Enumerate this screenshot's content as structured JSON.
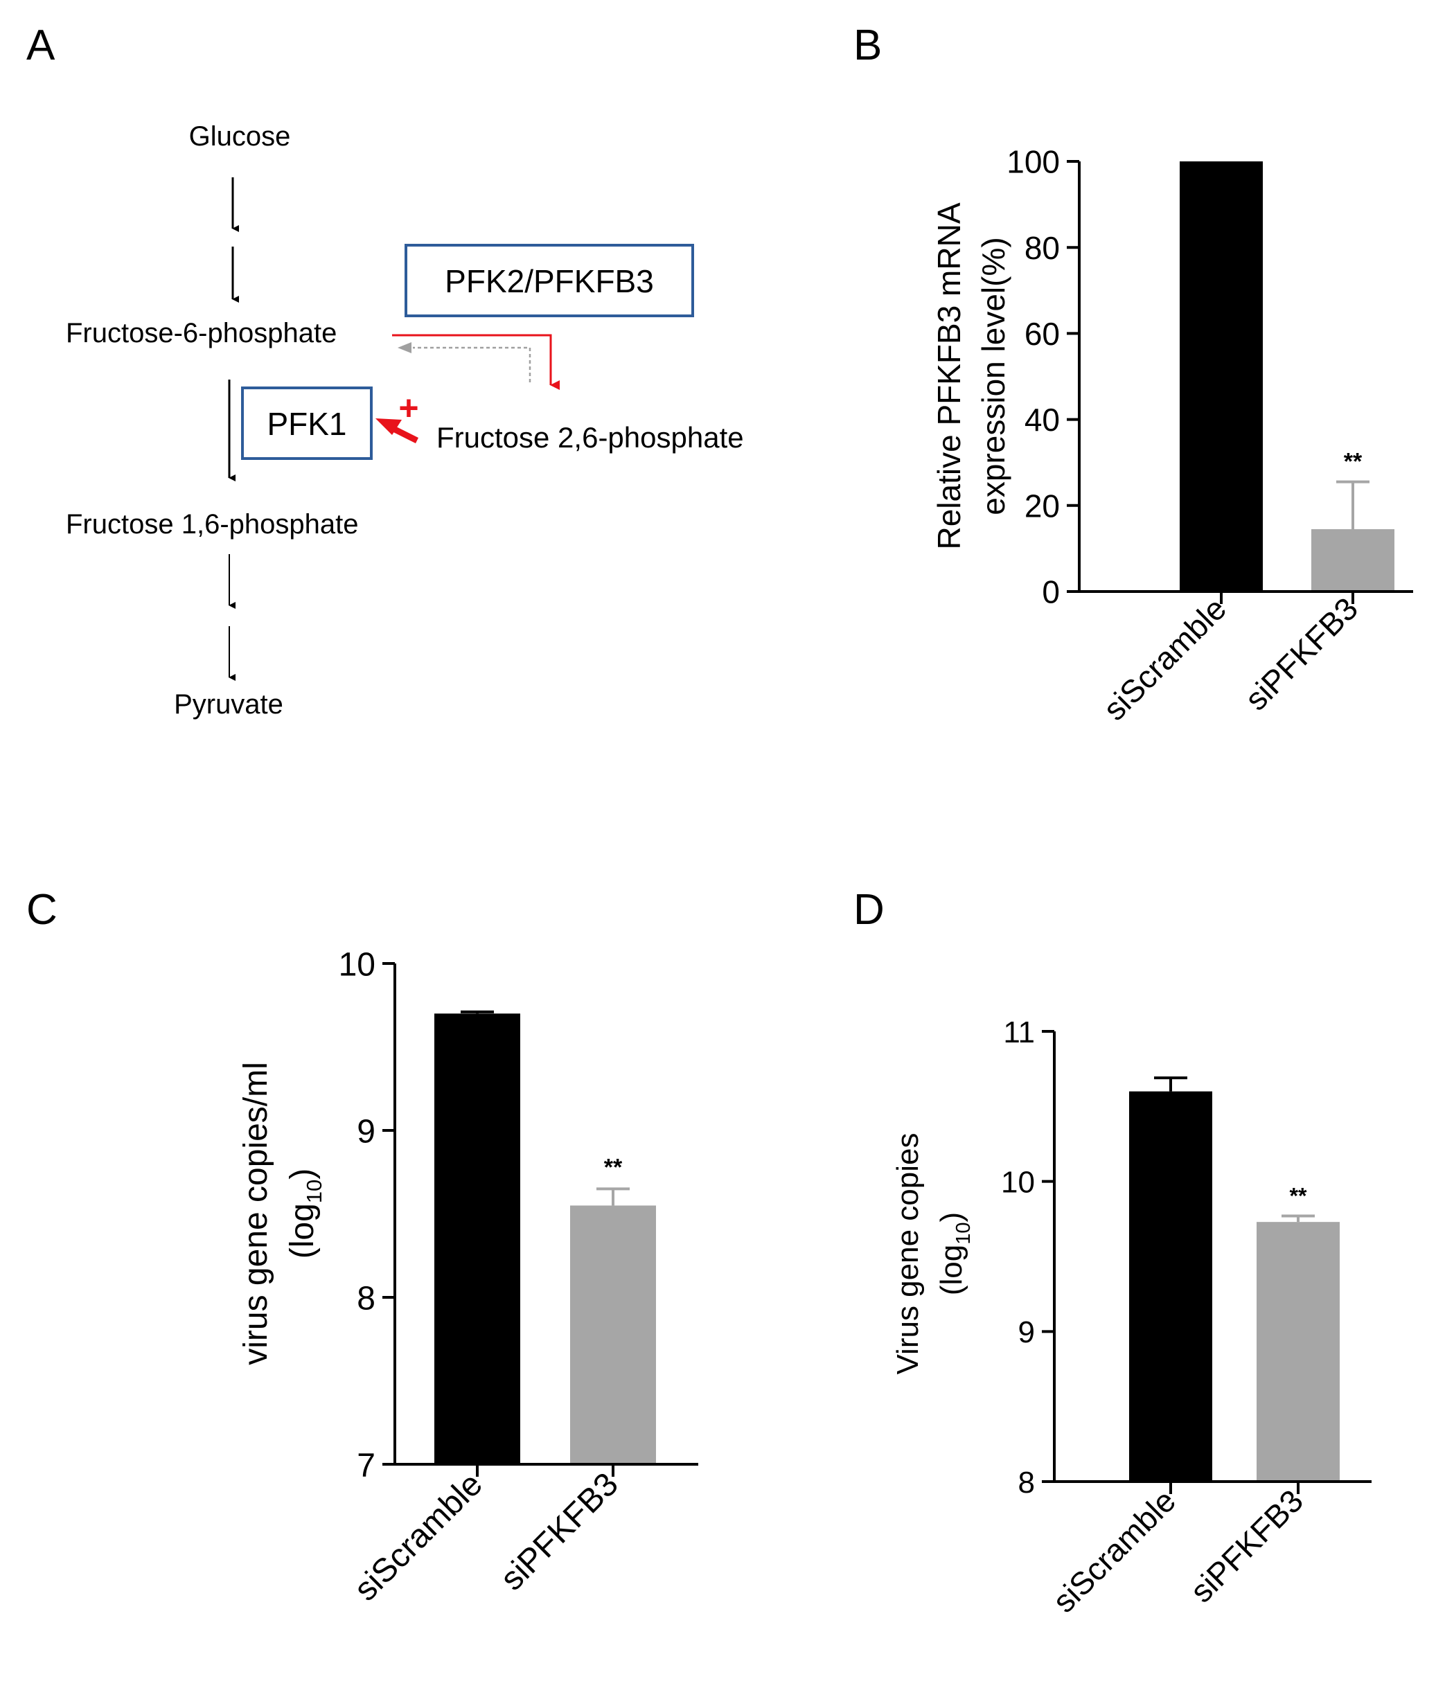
{
  "panels": {
    "A": "A",
    "B": "B",
    "C": "C",
    "D": "D"
  },
  "pathway": {
    "nodes": {
      "glucose": "Glucose",
      "f6p": "Fructose-6-phosphate",
      "f16p": "Fructose 1,6-phosphate",
      "pyruvate": "Pyruvate",
      "f26p": "Fructose 2,6-phosphate"
    },
    "enzymes": {
      "pfk1": "PFK1",
      "pfk2": "PFK2/PFKFB3"
    },
    "activation_symbol": "+",
    "colors": {
      "box": "#2E5C9A",
      "activation": "#E8131B",
      "reverse": "#A0A0A0"
    }
  },
  "chart_data": [
    {
      "panel": "B",
      "type": "bar",
      "categories": [
        "siScramble",
        "siPFKFB3"
      ],
      "values": [
        100,
        14.5
      ],
      "errors": [
        0,
        11
      ],
      "significance": [
        "",
        "**"
      ],
      "ylabel": [
        "Relative PFKFB3 mRNA",
        "expression level(%)"
      ],
      "ylim": [
        0,
        100
      ],
      "yticks": [
        0,
        20,
        40,
        60,
        80,
        100
      ],
      "colors": [
        "#000000",
        "#A6A6A6"
      ]
    },
    {
      "panel": "C",
      "type": "bar",
      "categories": [
        "siScramble",
        "siPFKFB3"
      ],
      "values": [
        9.7,
        8.55
      ],
      "errors": [
        0.01,
        0.1
      ],
      "significance": [
        "",
        "**"
      ],
      "ylabel": [
        "virus gene copies/ml",
        "(log",
        "10",
        ")"
      ],
      "ylim": [
        7,
        10
      ],
      "yticks": [
        7,
        8,
        9,
        10
      ],
      "colors": [
        "#000000",
        "#A6A6A6"
      ]
    },
    {
      "panel": "D",
      "type": "bar",
      "categories": [
        "siScramble",
        "siPFKFB3"
      ],
      "values": [
        10.6,
        9.73
      ],
      "errors": [
        0.09,
        0.04
      ],
      "significance": [
        "",
        "**"
      ],
      "ylabel": [
        "Virus gene copies",
        "(log",
        "10",
        ")"
      ],
      "ylim": [
        8,
        11
      ],
      "yticks": [
        8,
        9,
        10,
        11
      ],
      "colors": [
        "#000000",
        "#A6A6A6"
      ]
    }
  ]
}
